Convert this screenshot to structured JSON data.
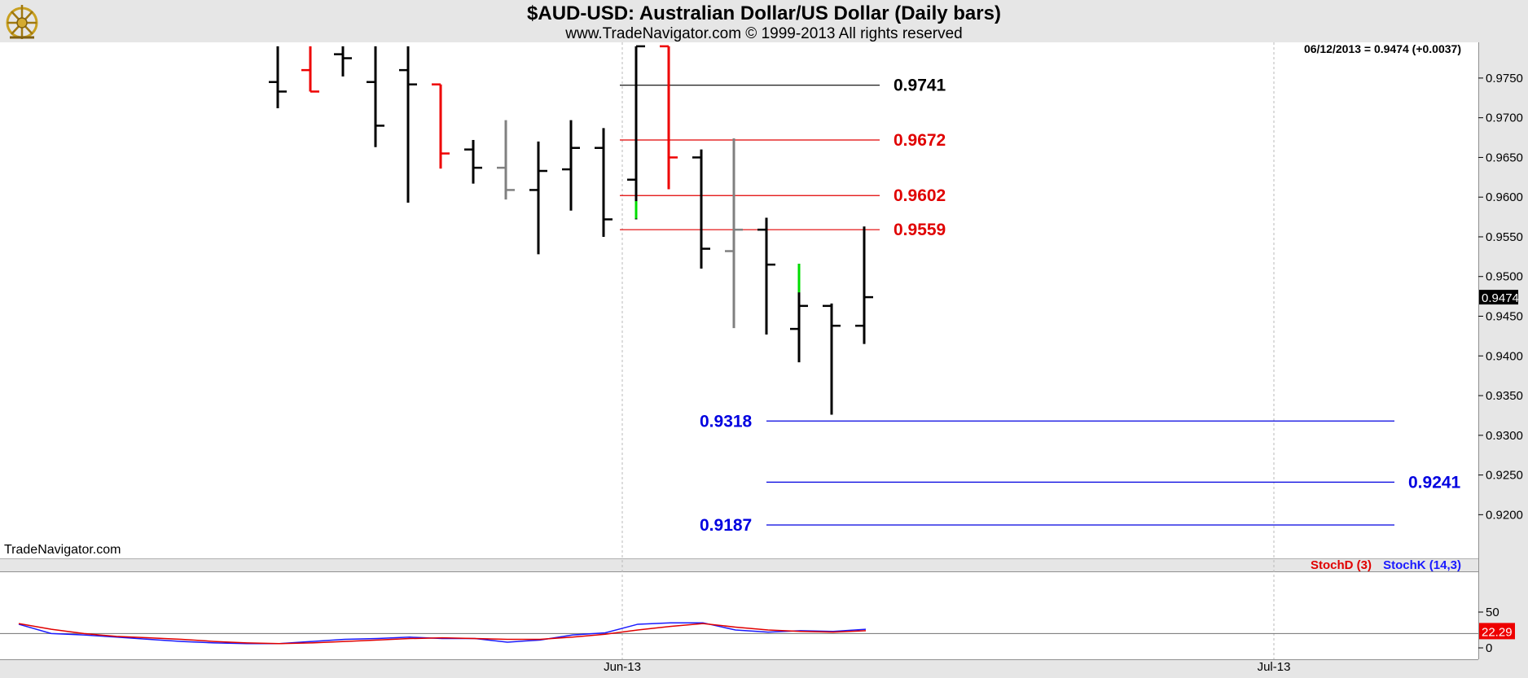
{
  "header": {
    "title": "$AUD-USD:  Australian Dollar/US Dollar  (Daily bars)",
    "subtitle": "www.TradeNavigator.com © 1999-2013 All rights reserved"
  },
  "watermark": "TradeNavigator.com",
  "last_readout": "06/12/2013 = 0.9474 (+0.0037)",
  "chart_data": [
    {
      "type": "ohlc",
      "ylim": [
        0.9145,
        0.9795
      ],
      "ytick_labels": [
        "0.9750",
        "0.9700",
        "0.9650",
        "0.9600",
        "0.9550",
        "0.9500",
        "0.9450",
        "0.9400",
        "0.9350",
        "0.9300",
        "0.9250",
        "0.9200"
      ],
      "ytick_values": [
        0.975,
        0.97,
        0.965,
        0.96,
        0.955,
        0.95,
        0.945,
        0.94,
        0.935,
        0.93,
        0.925,
        0.92
      ],
      "x_labels": [
        {
          "label": "Jun-13",
          "index": 19
        },
        {
          "label": "Jul-13",
          "index": 39
        }
      ],
      "last_price_label": "0.9474",
      "last_price": 0.9474,
      "bar_colors": {
        "black": "#000000",
        "red": "#ee0000",
        "gray": "#808080",
        "green": "#00dd00"
      },
      "bars": [
        {
          "o": 0.9745,
          "h": 0.979,
          "l": 0.9712,
          "c": 0.9733,
          "color": "black",
          "index": 8
        },
        {
          "o": 0.976,
          "h": 0.979,
          "l": 0.9733,
          "c": 0.9733,
          "color": "red",
          "index": 9
        },
        {
          "o": 0.978,
          "h": 0.979,
          "l": 0.9752,
          "c": 0.9775,
          "color": "black",
          "index": 10
        },
        {
          "o": 0.9745,
          "h": 0.979,
          "l": 0.9663,
          "c": 0.969,
          "color": "black",
          "index": 11
        },
        {
          "o": 0.976,
          "h": 0.979,
          "l": 0.9593,
          "c": 0.9742,
          "color": "black",
          "index": 12
        },
        {
          "o": 0.9742,
          "h": 0.9742,
          "l": 0.9636,
          "c": 0.9655,
          "color": "red",
          "index": 13
        },
        {
          "o": 0.966,
          "h": 0.9672,
          "l": 0.9617,
          "c": 0.9637,
          "color": "black",
          "index": 14
        },
        {
          "o": 0.9637,
          "h": 0.9697,
          "l": 0.9597,
          "c": 0.9609,
          "color": "gray",
          "index": 15
        },
        {
          "o": 0.9609,
          "h": 0.967,
          "l": 0.9528,
          "c": 0.9633,
          "color": "black",
          "index": 16
        },
        {
          "o": 0.9635,
          "h": 0.9697,
          "l": 0.9583,
          "c": 0.9662,
          "color": "black",
          "index": 17
        },
        {
          "o": 0.9662,
          "h": 0.9687,
          "l": 0.955,
          "c": 0.9572,
          "color": "black",
          "index": 18
        },
        {
          "o": 0.9622,
          "h": 0.979,
          "l": 0.9572,
          "c": 0.979,
          "color": "black",
          "index": 19
        },
        {
          "o": 0.979,
          "h": 0.979,
          "l": 0.961,
          "c": 0.965,
          "color": "red",
          "index": 20
        },
        {
          "o": 0.965,
          "h": 0.966,
          "l": 0.951,
          "c": 0.9535,
          "color": "black",
          "index": 21
        },
        {
          "o": 0.9532,
          "h": 0.9674,
          "l": 0.9435,
          "c": 0.9559,
          "color": "gray",
          "index": 22
        },
        {
          "o": 0.9559,
          "h": 0.9574,
          "l": 0.9427,
          "c": 0.9515,
          "color": "black",
          "index": 23
        },
        {
          "o": 0.9434,
          "h": 0.9516,
          "l": 0.9392,
          "c": 0.9463,
          "color": "black",
          "index": 24
        },
        {
          "o": 0.9463,
          "h": 0.9466,
          "l": 0.9326,
          "c": 0.9438,
          "color": "black",
          "index": 25
        },
        {
          "o": 0.9438,
          "h": 0.9563,
          "l": 0.9415,
          "c": 0.9474,
          "color": "black",
          "index": 26
        }
      ],
      "green_segments": [
        {
          "index": 19,
          "low": 0.9573,
          "high": 0.9595
        },
        {
          "index": 24,
          "low": 0.948,
          "high": 0.9516
        }
      ],
      "levels": [
        {
          "label": "0.9741",
          "value": 0.9741,
          "color": "#000000",
          "line_color": "#000000",
          "from": 19,
          "to": 27,
          "label_side": "right"
        },
        {
          "label": "0.9672",
          "value": 0.9672,
          "color": "#e00000",
          "line_color": "#e00000",
          "from": 19,
          "to": 27,
          "label_side": "right"
        },
        {
          "label": "0.9602",
          "value": 0.9602,
          "color": "#e00000",
          "line_color": "#e00000",
          "from": 19,
          "to": 27,
          "label_side": "right"
        },
        {
          "label": "0.9559",
          "value": 0.9559,
          "color": "#e00000",
          "line_color": "#e00000",
          "from": 19,
          "to": 27,
          "label_side": "right"
        },
        {
          "label": "0.9318",
          "value": 0.9318,
          "color": "#0000e0",
          "line_color": "#0000e0",
          "from": 23.5,
          "to": 42.8,
          "label_side": "left"
        },
        {
          "label": "0.9241",
          "value": 0.9241,
          "color": "#0000e0",
          "line_color": "#0000e0",
          "from": 23.5,
          "to": 42.8,
          "label_side": "right"
        },
        {
          "label": "0.9187",
          "value": 0.9187,
          "color": "#0000e0",
          "line_color": "#0000e0",
          "from": 23.5,
          "to": 42.8,
          "label_side": "left"
        }
      ]
    },
    {
      "type": "line",
      "legend": [
        "StochD (3)",
        "StochK (14,3)"
      ],
      "ylim": [
        0,
        100
      ],
      "ytick_labels": [
        "50",
        "0"
      ],
      "ytick_values": [
        50,
        0
      ],
      "reference_line": 20,
      "last_value_label": "22.29",
      "last_value": 22.29,
      "x_index": [
        0,
        1,
        2,
        3,
        4,
        5,
        6,
        7,
        8,
        9,
        10,
        11,
        12,
        13,
        14,
        15,
        16,
        17,
        18,
        19,
        20,
        21,
        22,
        23,
        24,
        25,
        26
      ],
      "series": [
        {
          "name": "StochK (14,3)",
          "color": "#1a1aff",
          "values": [
            33,
            20,
            18,
            15,
            12,
            9,
            7,
            6,
            6,
            9,
            12,
            13,
            15,
            13,
            13,
            8,
            11,
            18,
            21,
            33,
            35,
            35,
            25,
            22,
            24,
            23,
            26
          ]
        },
        {
          "name": "StochD (3)",
          "color": "#e00000",
          "values": [
            34,
            26,
            20,
            16,
            14,
            12,
            9,
            7,
            6,
            7,
            9,
            11,
            13,
            14,
            13,
            12,
            12,
            15,
            19,
            25,
            30,
            34,
            29,
            25,
            23,
            22,
            24
          ]
        }
      ]
    }
  ]
}
